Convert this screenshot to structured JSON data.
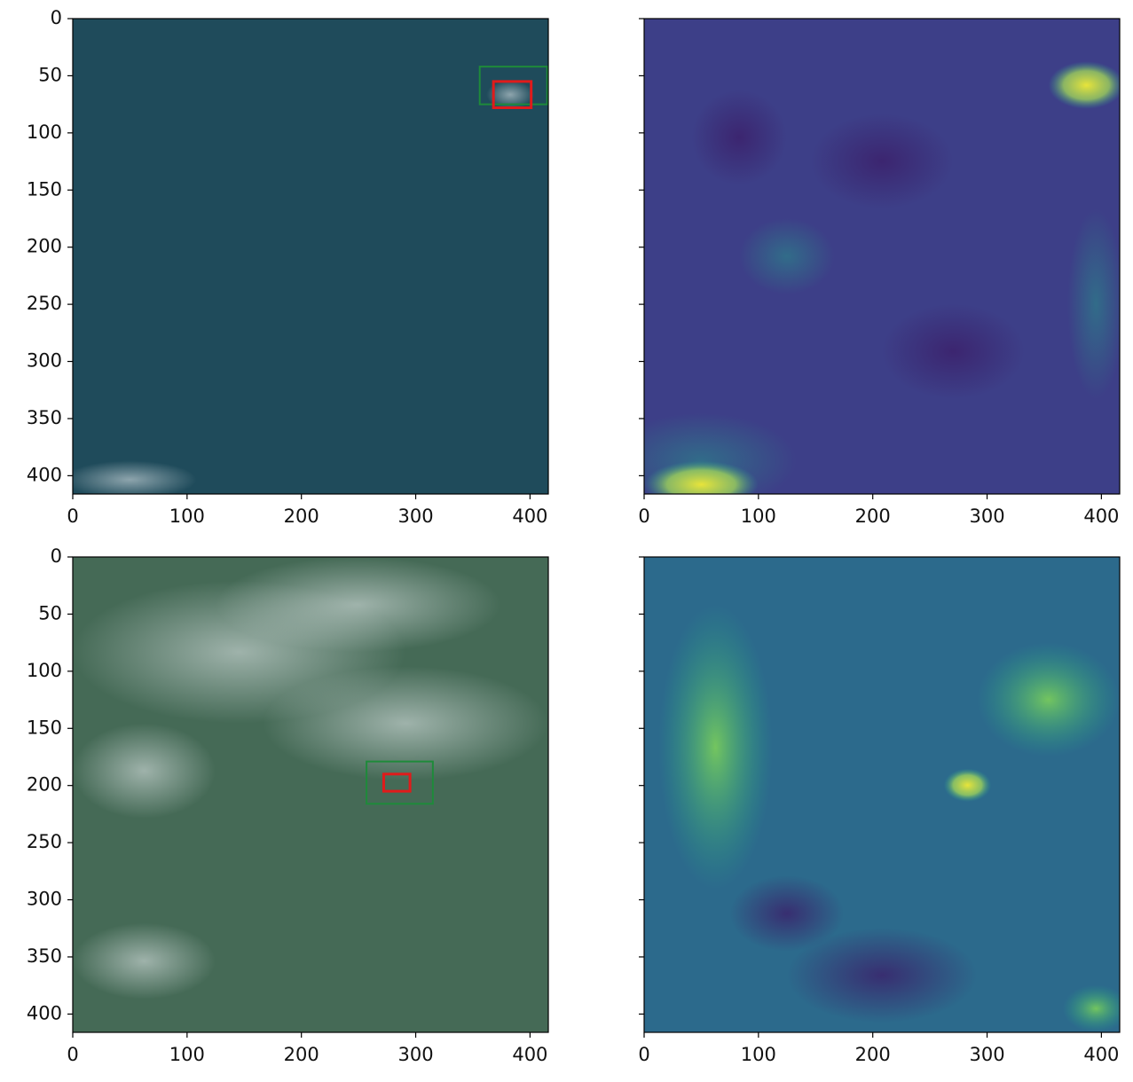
{
  "chart_data": [
    {
      "type": "image",
      "image_color": "#1f4b5b",
      "xlim": [
        0,
        416
      ],
      "ylim": [
        416,
        0
      ],
      "xticks": [
        0,
        100,
        200,
        300,
        400
      ],
      "yticks": [
        0,
        50,
        100,
        150,
        200,
        250,
        300,
        350,
        400
      ],
      "ytick_labels": true,
      "boxes": [
        {
          "color": "#1e8a3a",
          "x": [
            356,
            415
          ],
          "y": [
            42,
            75
          ]
        },
        {
          "color": "#e01b1b",
          "x": [
            368,
            401
          ],
          "y": [
            55,
            78
          ]
        }
      ]
    },
    {
      "type": "image",
      "image_color": "#3d3f88",
      "xlim": [
        0,
        416
      ],
      "ylim": [
        416,
        0
      ],
      "xticks": [
        0,
        100,
        200,
        300,
        400
      ],
      "yticks": [
        0,
        50,
        100,
        150,
        200,
        250,
        300,
        350,
        400
      ],
      "ytick_labels": false
    },
    {
      "type": "image",
      "image_color": "#456a56",
      "xlim": [
        0,
        416
      ],
      "ylim": [
        416,
        0
      ],
      "xticks": [
        0,
        100,
        200,
        300,
        400
      ],
      "yticks": [
        0,
        50,
        100,
        150,
        200,
        250,
        300,
        350,
        400
      ],
      "ytick_labels": true,
      "boxes": [
        {
          "color": "#1e8a3a",
          "x": [
            257,
            315
          ],
          "y": [
            179,
            216
          ]
        },
        {
          "color": "#e01b1b",
          "x": [
            272,
            295
          ],
          "y": [
            190,
            205
          ]
        }
      ]
    },
    {
      "type": "image",
      "image_color": "#2c6a8c",
      "xlim": [
        0,
        416
      ],
      "ylim": [
        416,
        0
      ],
      "xticks": [
        0,
        100,
        200,
        300,
        400
      ],
      "yticks": [
        0,
        50,
        100,
        150,
        200,
        250,
        300,
        350,
        400
      ],
      "ytick_labels": false
    }
  ]
}
